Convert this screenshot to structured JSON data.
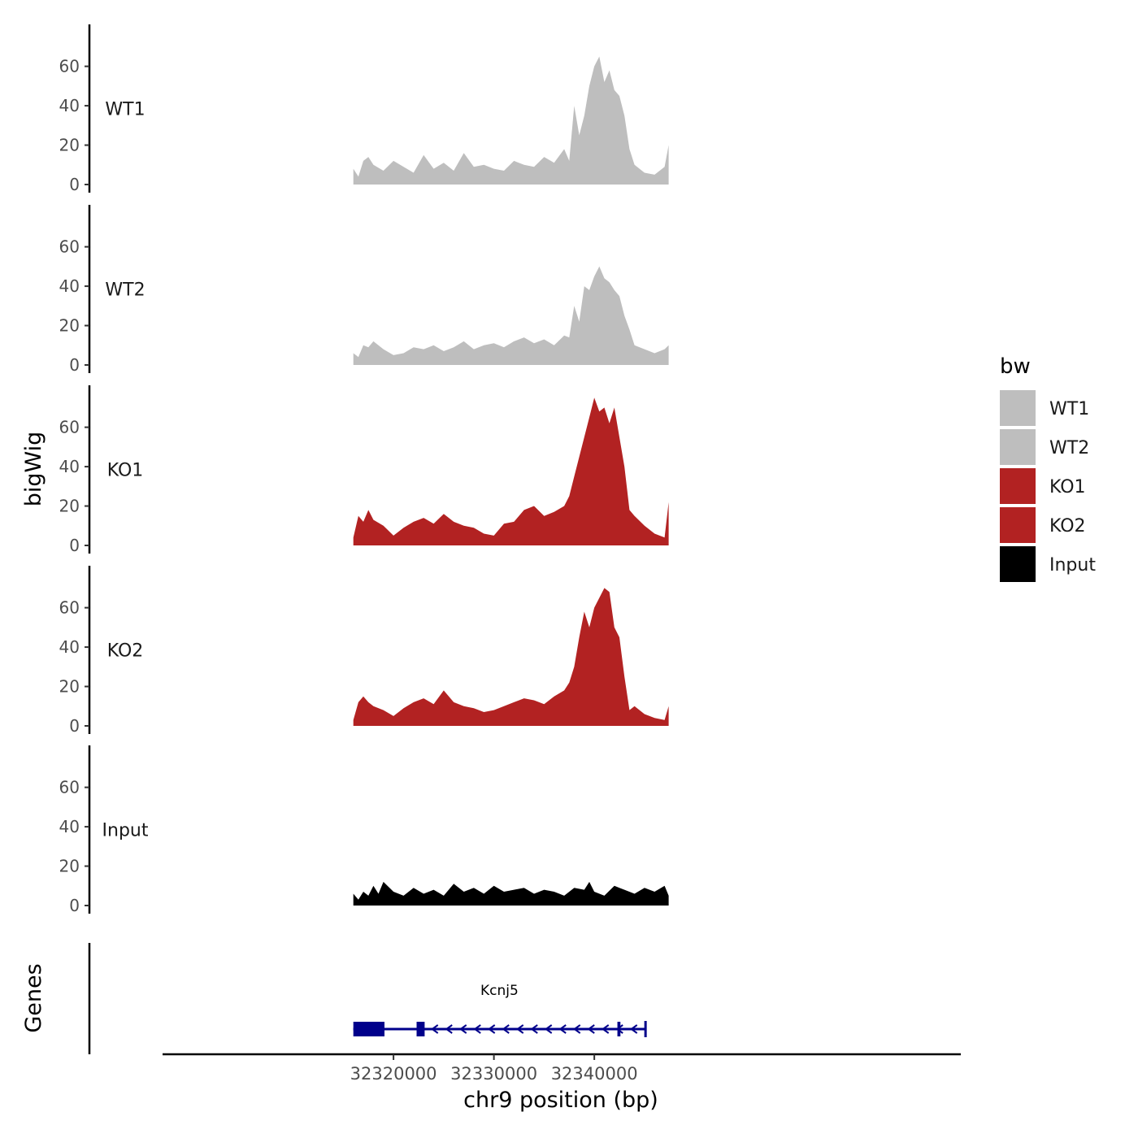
{
  "chart_data": {
    "type": "area",
    "title": "",
    "xlabel": "chr9 position (bp)",
    "ylabel": "bigWig",
    "gene_track_label": "Genes",
    "xlim": [
      32297000,
      32376500
    ],
    "ylim": [
      0,
      78
    ],
    "x_ticks": [
      32320000,
      32330000,
      32340000
    ],
    "x_tick_labels": [
      "32320000",
      "32330000",
      "32340000"
    ],
    "y_ticks": [
      0,
      20,
      40,
      60
    ],
    "y_tick_labels": [
      "0",
      "20",
      "40",
      "60"
    ],
    "signal_start": 32316000,
    "signal_end": 32347400,
    "legend": {
      "title": "bw",
      "position": "right",
      "entries": [
        {
          "name": "WT1",
          "color": "#bebebe"
        },
        {
          "name": "WT2",
          "color": "#bebebe"
        },
        {
          "name": "KO1",
          "color": "#b22222"
        },
        {
          "name": "KO2",
          "color": "#b22222"
        },
        {
          "name": "Input",
          "color": "#000000"
        }
      ]
    },
    "series": [
      {
        "name": "WT1",
        "color": "#bebebe",
        "x": [
          32316000,
          32316500,
          32317000,
          32317500,
          32318000,
          32319000,
          32320000,
          32321000,
          32322000,
          32323000,
          32324000,
          32325000,
          32326000,
          32327000,
          32328000,
          32329000,
          32330000,
          32331000,
          32332000,
          32333000,
          32334000,
          32335000,
          32336000,
          32337000,
          32337500,
          32338000,
          32338500,
          32339000,
          32339500,
          32340000,
          32340500,
          32341000,
          32341500,
          32342000,
          32342500,
          32343000,
          32343500,
          32344000,
          32345000,
          32346000,
          32347000,
          32347400
        ],
        "values": [
          8,
          4,
          12,
          14,
          10,
          7,
          12,
          9,
          6,
          15,
          8,
          11,
          7,
          16,
          9,
          10,
          8,
          7,
          12,
          10,
          9,
          14,
          11,
          18,
          12,
          40,
          25,
          35,
          50,
          60,
          65,
          52,
          58,
          48,
          45,
          35,
          18,
          10,
          6,
          5,
          9,
          20
        ]
      },
      {
        "name": "WT2",
        "color": "#bebebe",
        "x": [
          32316000,
          32316500,
          32317000,
          32317500,
          32318000,
          32319000,
          32320000,
          32321000,
          32322000,
          32323000,
          32324000,
          32325000,
          32326000,
          32327000,
          32328000,
          32329000,
          32330000,
          32331000,
          32332000,
          32333000,
          32334000,
          32335000,
          32336000,
          32337000,
          32337500,
          32338000,
          32338500,
          32339000,
          32339500,
          32340000,
          32340500,
          32341000,
          32341500,
          32342000,
          32342500,
          32343000,
          32343500,
          32344000,
          32345000,
          32346000,
          32347000,
          32347400
        ],
        "values": [
          6,
          4,
          10,
          9,
          12,
          8,
          5,
          6,
          9,
          8,
          10,
          7,
          9,
          12,
          8,
          10,
          11,
          9,
          12,
          14,
          11,
          13,
          10,
          15,
          14,
          30,
          22,
          40,
          38,
          45,
          50,
          44,
          42,
          38,
          35,
          25,
          18,
          10,
          8,
          6,
          8,
          10
        ]
      },
      {
        "name": "KO1",
        "color": "#b22222",
        "x": [
          32316000,
          32316500,
          32317000,
          32317500,
          32318000,
          32319000,
          32320000,
          32321000,
          32322000,
          32323000,
          32324000,
          32325000,
          32326000,
          32327000,
          32328000,
          32329000,
          32330000,
          32331000,
          32332000,
          32333000,
          32334000,
          32335000,
          32336000,
          32337000,
          32337500,
          32338000,
          32338500,
          32339000,
          32339500,
          32340000,
          32340500,
          32341000,
          32341500,
          32342000,
          32342500,
          32343000,
          32343500,
          32344000,
          32345000,
          32346000,
          32347000,
          32347400
        ],
        "values": [
          4,
          15,
          12,
          18,
          13,
          10,
          5,
          9,
          12,
          14,
          11,
          16,
          12,
          10,
          9,
          6,
          5,
          11,
          12,
          18,
          20,
          15,
          17,
          20,
          25,
          35,
          45,
          55,
          65,
          75,
          68,
          70,
          62,
          70,
          55,
          40,
          18,
          15,
          10,
          6,
          4,
          22
        ]
      },
      {
        "name": "KO2",
        "color": "#b22222",
        "x": [
          32316000,
          32316500,
          32317000,
          32317500,
          32318000,
          32319000,
          32320000,
          32321000,
          32322000,
          32323000,
          32324000,
          32325000,
          32326000,
          32327000,
          32328000,
          32329000,
          32330000,
          32331000,
          32332000,
          32333000,
          32334000,
          32335000,
          32336000,
          32337000,
          32337500,
          32338000,
          32338500,
          32339000,
          32339500,
          32340000,
          32340500,
          32341000,
          32341500,
          32342000,
          32342500,
          32343000,
          32343500,
          32344000,
          32345000,
          32346000,
          32347000,
          32347400
        ],
        "values": [
          3,
          12,
          15,
          12,
          10,
          8,
          5,
          9,
          12,
          14,
          11,
          18,
          12,
          10,
          9,
          7,
          8,
          10,
          12,
          14,
          13,
          11,
          15,
          18,
          22,
          30,
          45,
          58,
          50,
          60,
          65,
          70,
          68,
          50,
          45,
          25,
          8,
          10,
          6,
          4,
          3,
          10
        ]
      },
      {
        "name": "Input",
        "color": "#000000",
        "x": [
          32316000,
          32316500,
          32317000,
          32317500,
          32318000,
          32318500,
          32319000,
          32320000,
          32321000,
          32322000,
          32323000,
          32324000,
          32325000,
          32326000,
          32327000,
          32328000,
          32329000,
          32330000,
          32331000,
          32332000,
          32333000,
          32334000,
          32335000,
          32336000,
          32337000,
          32338000,
          32339000,
          32339500,
          32340000,
          32341000,
          32342000,
          32343000,
          32344000,
          32345000,
          32346000,
          32347000,
          32347400
        ],
        "values": [
          6,
          3,
          7,
          5,
          10,
          6,
          12,
          7,
          5,
          9,
          6,
          8,
          5,
          11,
          7,
          9,
          6,
          10,
          7,
          8,
          9,
          6,
          8,
          7,
          5,
          9,
          8,
          12,
          7,
          5,
          10,
          8,
          6,
          9,
          7,
          10,
          5
        ]
      }
    ],
    "genes": [
      {
        "name": "Kcnj5",
        "strand": "-",
        "start": 32316000,
        "end": 32345100,
        "exons": [
          {
            "start": 32316000,
            "end": 32319100
          },
          {
            "start": 32322300,
            "end": 32323100
          },
          {
            "start": 32342300,
            "end": 32342600
          }
        ]
      }
    ]
  }
}
